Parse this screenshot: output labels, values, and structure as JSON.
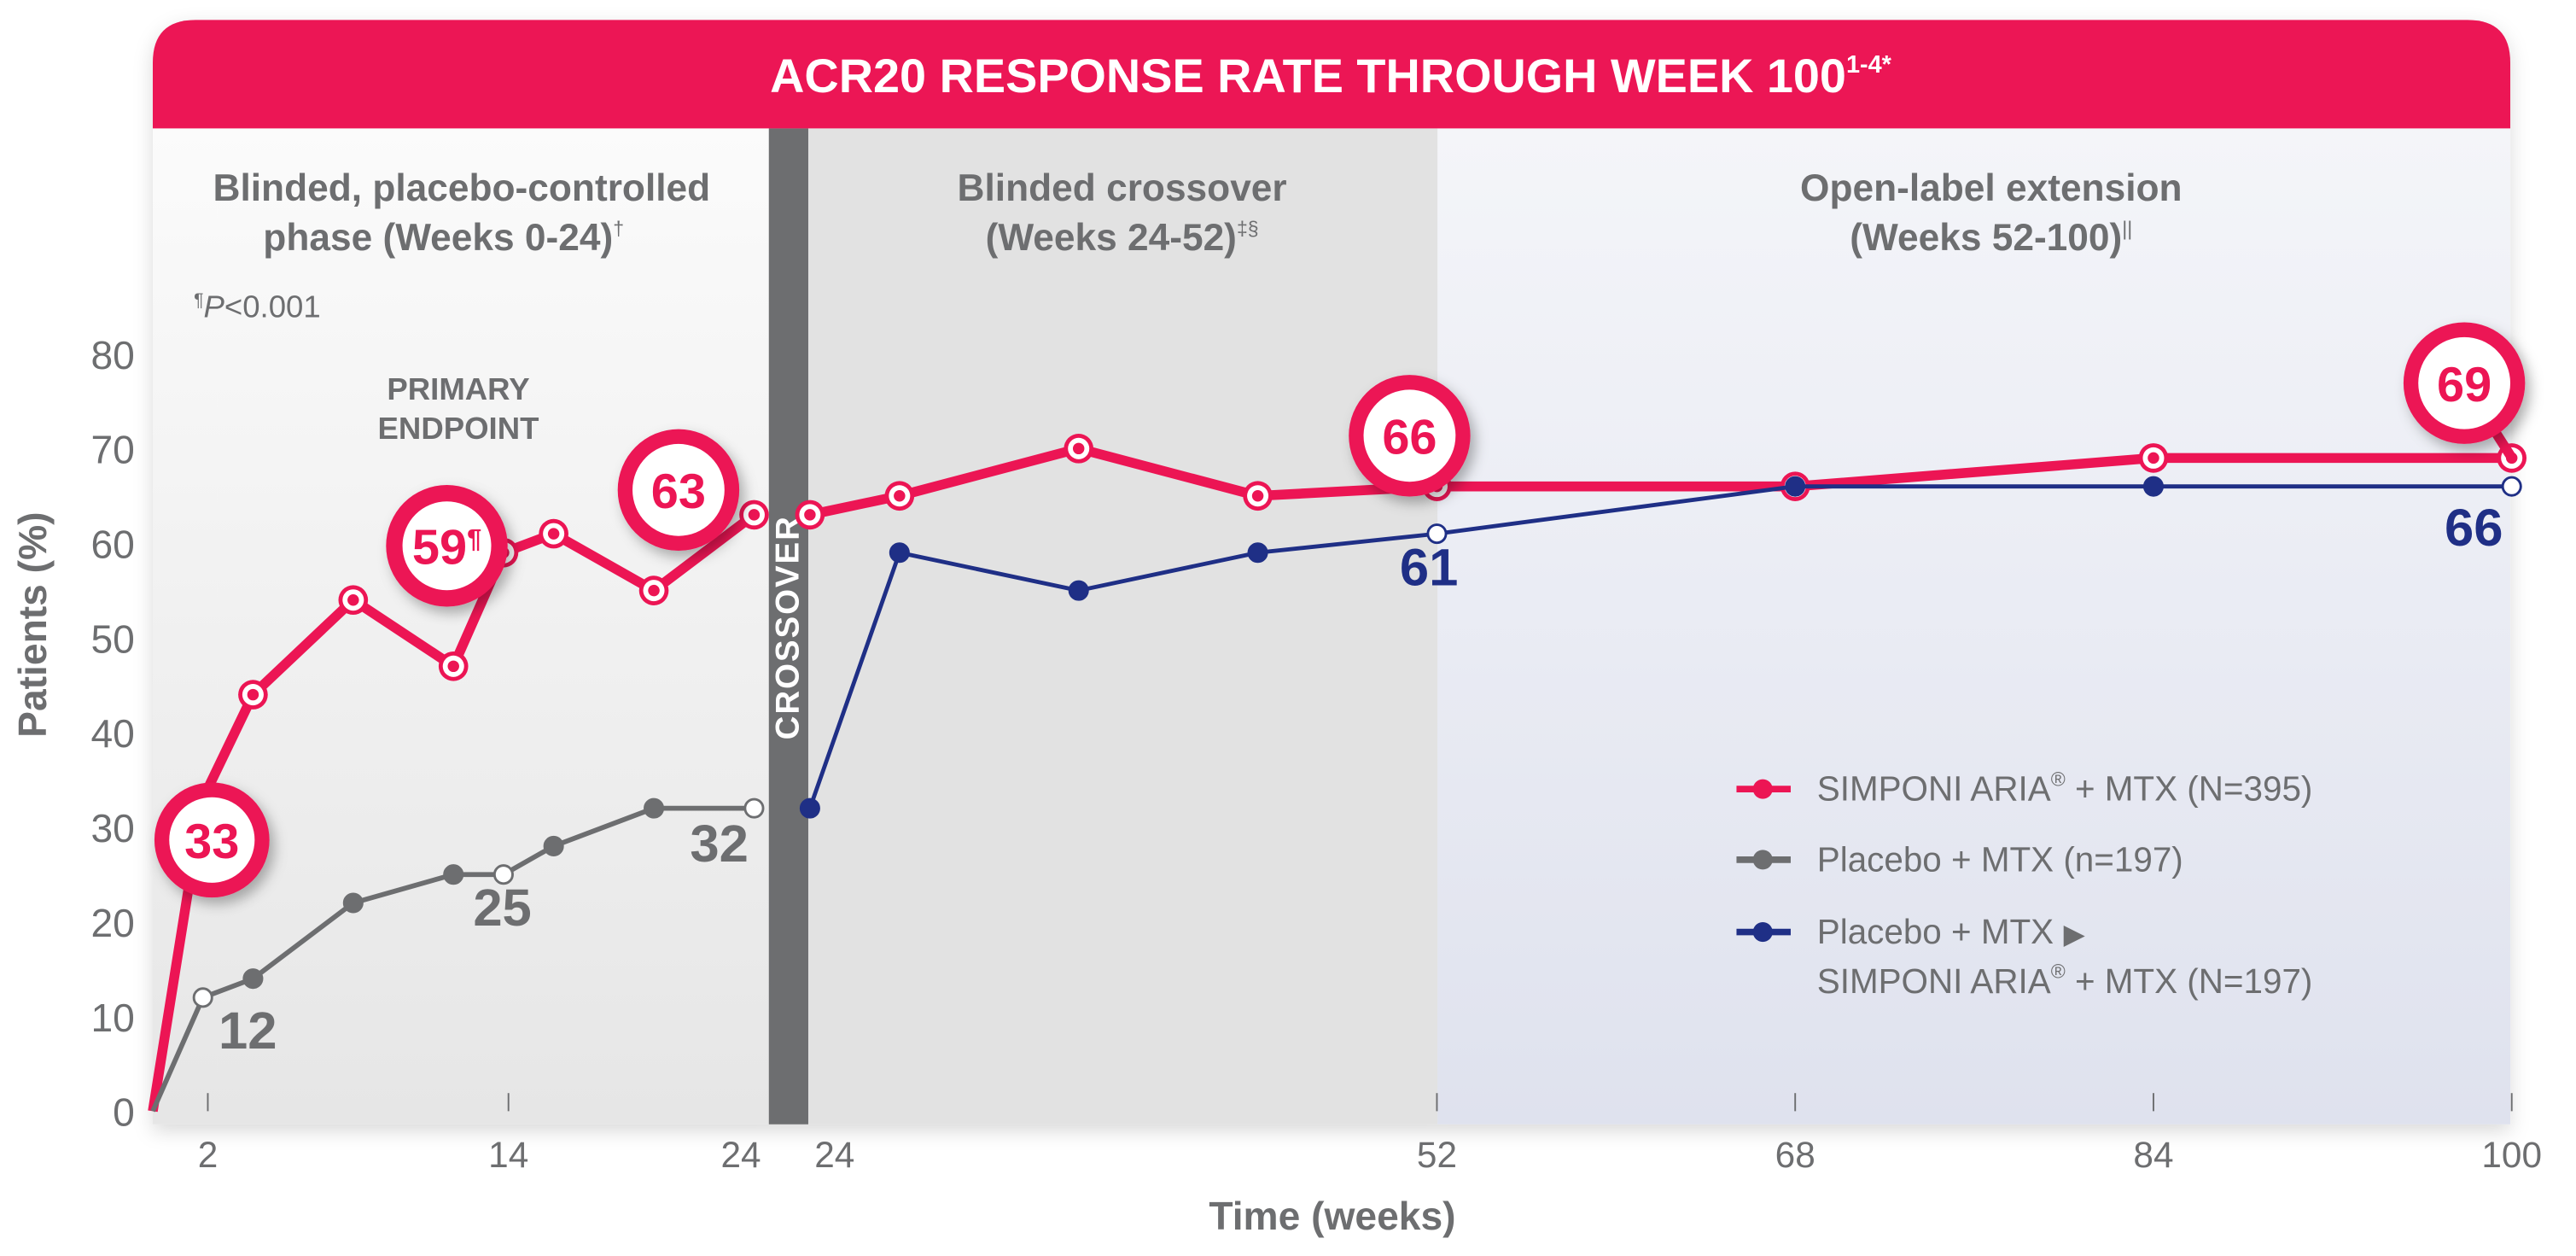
{
  "colors": {
    "red": "#ec1554",
    "gray": "#6d6e70",
    "blue": "#1f2f86",
    "crossover_bar": "#6d6e70"
  },
  "chart_data": {
    "type": "line",
    "title": "ACR20 RESPONSE RATE THROUGH WEEK 100",
    "title_superscript": "1-4*",
    "ylabel": "Patients (%)",
    "xlabel": "Time (weeks)",
    "ylim": [
      0,
      80
    ],
    "yticks": [
      "0",
      "10",
      "20",
      "30",
      "40",
      "50",
      "60",
      "70",
      "80"
    ],
    "xticks_left": [
      "2",
      "14",
      "24"
    ],
    "xticks_right": [
      "24",
      "52",
      "68",
      "84",
      "100"
    ],
    "crossover_label": "CROSSOVER",
    "phases": [
      {
        "title_line1": "Blinded, placebo-controlled",
        "title_line2": "phase (Weeks 0-24)",
        "sup": "†"
      },
      {
        "title_line1": "Blinded crossover",
        "title_line2": "(Weeks 24-52)",
        "sup": "‡§"
      },
      {
        "title_line1": "Open-label extension",
        "title_line2": "(Weeks 52-100)",
        "sup": "||"
      }
    ],
    "pvalue_note": {
      "mark": "¶",
      "p": "P",
      "rest": "<0.001"
    },
    "primary_endpoint": {
      "line1": "PRIMARY",
      "line2": "ENDPOINT"
    },
    "series": [
      {
        "name": "SIMPONI ARIA® + MTX (N=395)",
        "color": "#ec1554",
        "left": {
          "x": [
            0,
            2,
            4,
            8,
            12,
            14,
            16,
            20,
            24
          ],
          "y": [
            0,
            33,
            44,
            54,
            47,
            59,
            61,
            55,
            63
          ]
        },
        "right": {
          "x": [
            24,
            28,
            36,
            44,
            52,
            68,
            84,
            100
          ],
          "y": [
            63,
            65,
            70,
            65,
            66,
            66,
            69,
            69
          ]
        }
      },
      {
        "name": "Placebo + MTX (n=197)",
        "color": "#6d6e70",
        "left": {
          "x": [
            0,
            2,
            4,
            8,
            12,
            14,
            16,
            20,
            24
          ],
          "y": [
            0,
            12,
            14,
            22,
            25,
            25,
            28,
            32,
            32
          ]
        },
        "open_weeks": [
          2,
          14,
          24
        ]
      },
      {
        "name": "Placebo + MTX ▶ SIMPONI ARIA® + MTX (N=197)",
        "color": "#1f2f86",
        "right": {
          "x": [
            24,
            28,
            36,
            44,
            52,
            68,
            84,
            100
          ],
          "y": [
            32,
            59,
            55,
            59,
            61,
            66,
            66,
            66
          ]
        },
        "open_weeks": [
          52,
          100
        ]
      }
    ],
    "callouts": {
      "red": [
        "33",
        "59",
        "63",
        "66",
        "69"
      ],
      "red_59_mark": "¶",
      "gray": [
        "12",
        "25",
        "32"
      ],
      "blue": [
        "61",
        "66"
      ]
    },
    "legend": {
      "placement": "lower-right",
      "items": [
        {
          "text": "SIMPONI ARIA",
          "reg": "®",
          "rest": " + MTX (N=395)"
        },
        {
          "text": "Placebo + MTX (n=197)"
        },
        {
          "text": "Placebo + MTX",
          "arrow": "▶",
          "line2": "SIMPONI ARIA",
          "reg": "®",
          "rest2": " + MTX (N=197)"
        }
      ]
    }
  }
}
